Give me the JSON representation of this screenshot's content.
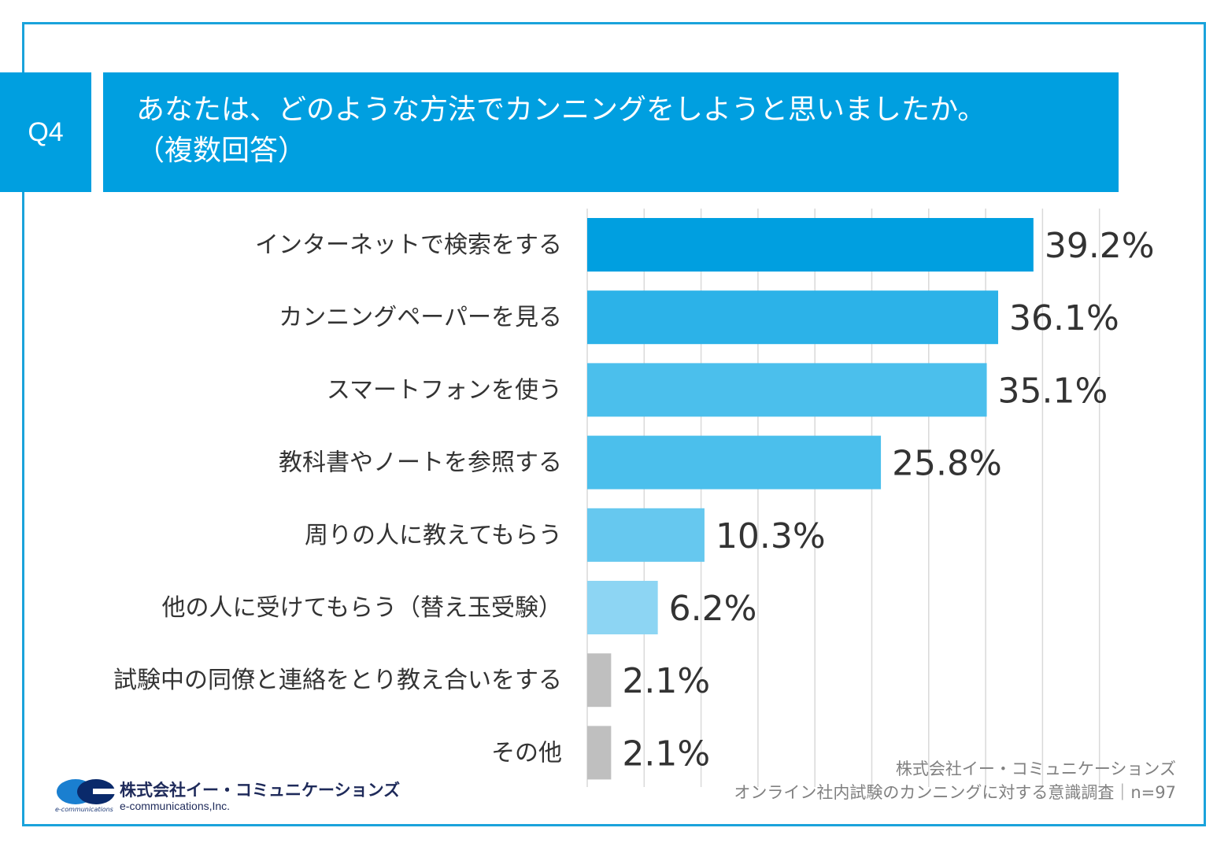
{
  "header": {
    "question_no": "Q4",
    "title_line1": "あなたは、どのような方法でカンニングをしようと思いましたか。",
    "title_line2": "（複数回答）"
  },
  "colors": {
    "frame": "#1aa3db",
    "header_bg": "#009fe0",
    "bar_gray": "#bfbfbf",
    "grid": "#d9d9d9"
  },
  "chart_data": {
    "type": "bar",
    "orientation": "horizontal",
    "title": "あなたは、どのような方法でカンニングをしようと思いましたか。（複数回答）",
    "xlabel": "",
    "ylabel": "",
    "unit": "%",
    "xlim": [
      0,
      45
    ],
    "grid": true,
    "legend": "none",
    "categories": [
      "インターネットで検索をする",
      "カンニングペーパーを見る",
      "スマートフォンを使う",
      "教科書やノートを参照する",
      "周りの人に教えてもらう",
      "他の人に受けてもらう（替え玉受験）",
      "試験中の同僚と連絡をとり教え合いをする",
      "その他"
    ],
    "values": [
      39.2,
      36.1,
      35.1,
      25.8,
      10.3,
      6.2,
      2.1,
      2.1
    ],
    "value_labels": [
      "39.2%",
      "36.1%",
      "35.1%",
      "25.8%",
      "10.3%",
      "6.2%",
      "2.1%",
      "2.1%"
    ],
    "bar_colors": [
      "#009fe0",
      "#2cb2e8",
      "#4bbfec",
      "#4bbfec",
      "#66c8ef",
      "#8dd5f3",
      "#bfbfbf",
      "#bfbfbf"
    ]
  },
  "source": {
    "line1": "株式会社イー・コミュニケーションズ",
    "line2": "オンライン社内試験のカンニングに対する意識調査｜n=97"
  },
  "logo": {
    "name_ja": "株式会社イー・コミュニケーションズ",
    "name_en": "e-communications,Inc.",
    "mark_text": "e-communications"
  }
}
